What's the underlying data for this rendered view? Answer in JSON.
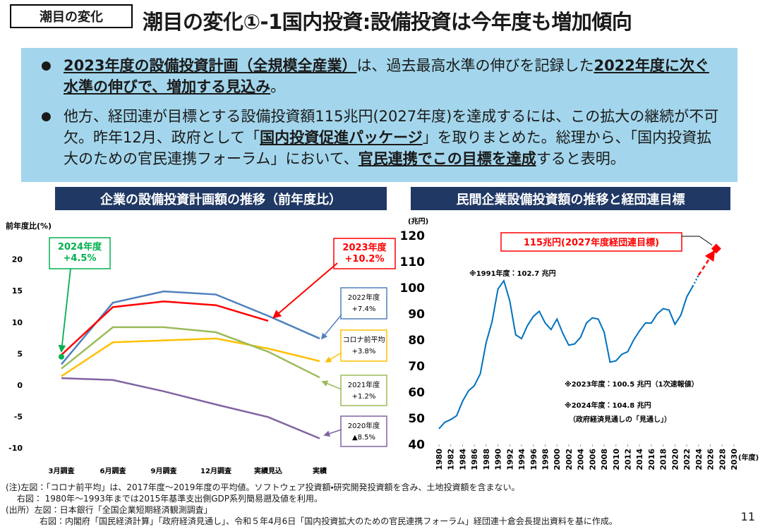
{
  "header": {
    "tag": "潮目の変化",
    "title": "潮目の変化①-1国内投資:設備投資は今年度も増加傾向"
  },
  "bullets": [
    [
      {
        "text": "2023年度の設備投資計画（全規模全産業）",
        "bold": true,
        "underline": true
      },
      {
        "text": "は、過去最高水準の伸びを記録した",
        "bold": false,
        "underline": false
      },
      {
        "text": "2022年度に次ぐ水準の伸びで、増加する見込み",
        "bold": true,
        "underline": true
      },
      {
        "text": "。",
        "bold": false,
        "underline": false
      }
    ],
    [
      {
        "text": "他方、経団連が目標とする設備投資額115兆円(2027年度)を達成するには、この拡大の継続が不可欠。昨年12月、政府として「",
        "bold": false,
        "underline": false
      },
      {
        "text": "国内投資促進パッケージ",
        "bold": true,
        "underline": true
      },
      {
        "text": "」を取りまとめた。総理から、「国内投資拡大のための官民連携フォーラム」において、",
        "bold": false,
        "underline": false
      },
      {
        "text": "官民連携でこの目標を達成",
        "bold": true,
        "underline": true
      },
      {
        "text": "すると表明。",
        "bold": false,
        "underline": false
      }
    ]
  ],
  "chart_data": [
    {
      "type": "line",
      "title": "企業の設備投資計画額の推移（前年度比）",
      "y_label": "前年度比(%)",
      "categories": [
        "3月調査",
        "6月調査",
        "9月調査",
        "12月調査",
        "実績見込",
        "実績"
      ],
      "ylim": [
        -10,
        24
      ],
      "yticks": [
        -10,
        -5,
        0,
        5,
        10,
        15,
        20
      ],
      "series": [
        {
          "color": "#4f81bd",
          "values": [
            3.3,
            13.1,
            14.9,
            14.4,
            11.0,
            7.4
          ]
        },
        {
          "color": "#ff0000",
          "values": [
            4.8,
            12.4,
            13.3,
            12.7,
            10.2,
            null
          ]
        },
        {
          "color": "#ffc000",
          "values": [
            1.4,
            6.8,
            7.1,
            7.4,
            5.8,
            3.8
          ]
        },
        {
          "color": "#9bbb59",
          "values": [
            2.6,
            9.2,
            9.2,
            8.4,
            5.3,
            1.2
          ]
        },
        {
          "color": "#8064a2",
          "values": [
            1.1,
            0.8,
            -1.0,
            -3.1,
            -5.1,
            -8.5
          ]
        },
        {
          "color": "#00b050",
          "markers_only": true,
          "values": [
            4.5,
            null,
            null,
            null,
            null,
            null
          ]
        }
      ],
      "annotations": [
        {
          "lines": [
            "2024年度",
            "+4.5%"
          ],
          "color": "#00b050"
        },
        {
          "lines": [
            "2023年度",
            "+10.2%"
          ],
          "color": "#ff0000"
        },
        {
          "lines": [
            "2022年度",
            "+7.4%"
          ],
          "color": "#4f81bd"
        },
        {
          "lines": [
            "コロナ前平均",
            "+3.8%"
          ],
          "color": "#ffc000"
        },
        {
          "lines": [
            "2021年度",
            "+1.2%"
          ],
          "color": "#9bbb59"
        },
        {
          "lines": [
            "2020年度",
            "▲8.5%"
          ],
          "color": "#8064a2"
        }
      ]
    },
    {
      "type": "line",
      "title": "民間企業設備投資額の推移と経団連目標",
      "y_label": "(兆円)",
      "x_label": "(年度)",
      "xlim": [
        1980,
        2030
      ],
      "xticks": [
        1980,
        1982,
        1984,
        1986,
        1988,
        1990,
        1992,
        1994,
        1996,
        1998,
        2000,
        2002,
        2004,
        2006,
        2008,
        2010,
        2012,
        2014,
        2016,
        2018,
        2020,
        2022,
        2024,
        2026,
        2028,
        2030
      ],
      "ylim": [
        40,
        120
      ],
      "yticks": [
        40,
        50,
        60,
        70,
        80,
        90,
        100,
        110,
        120
      ],
      "series": [
        {
          "color": "#0070c0",
          "style": "solid",
          "x": [
            1980,
            1981,
            1982,
            1983,
            1984,
            1985,
            1986,
            1987,
            1988,
            1989,
            1990,
            1991,
            1992,
            1993,
            1994,
            1995,
            1996,
            1997,
            1998,
            1999,
            2000,
            2001,
            2002,
            2003,
            2004,
            2005,
            2006,
            2007,
            2008,
            2009,
            2010,
            2011,
            2012,
            2013,
            2014,
            2015,
            2016,
            2017,
            2018,
            2019,
            2020,
            2021,
            2022,
            2023
          ],
          "values": [
            46,
            48.5,
            49.5,
            51,
            56.5,
            60.5,
            62.5,
            67,
            79,
            87,
            99.5,
            102.7,
            95,
            82,
            80.5,
            85.5,
            89,
            91,
            86.5,
            84,
            88,
            82.5,
            78,
            78.5,
            81,
            86.5,
            88.5,
            88,
            83,
            71.5,
            72,
            74.5,
            75.5,
            80,
            83.5,
            86.5,
            86.5,
            90,
            92,
            91.5,
            86,
            89.5,
            96.5,
            100.5
          ]
        },
        {
          "color": "#0070c0",
          "style": "dotted",
          "x": [
            2023,
            2024
          ],
          "values": [
            100.5,
            104.8
          ]
        },
        {
          "color": "#ff0000",
          "style": "dashed",
          "arrow": true,
          "x": [
            2024,
            2026.6
          ],
          "values": [
            104.8,
            113.8
          ]
        },
        {
          "color": "#ff0000",
          "markers_only": true,
          "marker": "diamond",
          "x": [
            2027
          ],
          "values": [
            115
          ]
        }
      ],
      "annotations": [
        {
          "lines": [
            "115兆円(2027年度経団連目標)"
          ],
          "color": "#ff0000"
        },
        {
          "lines": [
            "※1991年度：102.7 兆円"
          ],
          "color": "#000000"
        },
        {
          "lines": [
            "※2023年度：100.5 兆円（1次速報値）"
          ],
          "color": "#000000"
        },
        {
          "lines": [
            "※2024年度：104.8 兆円"
          ],
          "color": "#000000"
        },
        {
          "lines": [
            "（政府経済見通しの「見通し」）"
          ],
          "color": "#000000"
        }
      ]
    }
  ],
  "notes": [
    "(注)左図：「コロナ前平均」は、2017年度～2019年度の平均値。ソフトウェア投資額・研究開発投資額を含み、土地投資額を含まない。",
    "　 右図： 1980年～1993年までは2015年基準支出側GDP系列簡易遡及値を利用。",
    "(出所）左図：日本銀行「全国企業短期経済観測調査」",
    "　　　　右図：内閣府「国民経済計算」「政府経済見通し」、令和５年4月6日「国内投資拡大のための官民連携フォーラム」経団連十倉会長提出資料を基に作成。"
  ],
  "page_number": "11"
}
